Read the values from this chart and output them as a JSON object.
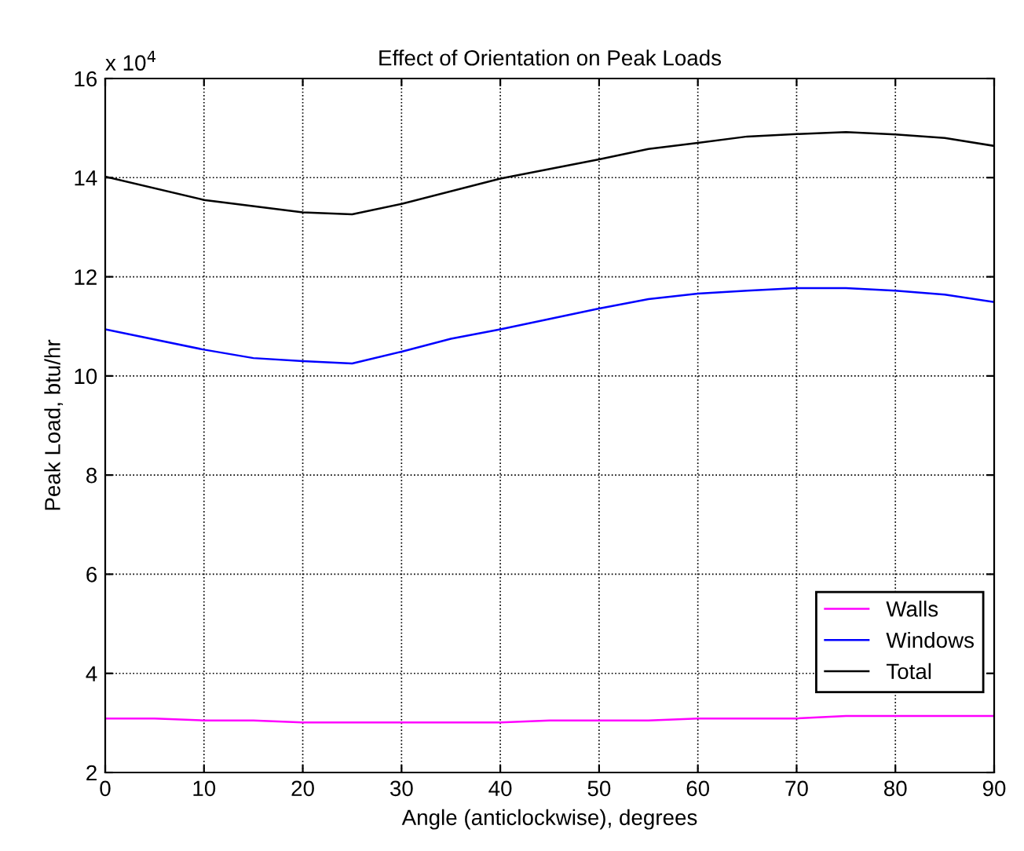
{
  "chart_data": {
    "type": "line",
    "title": "Effect of Orientation on Peak Loads",
    "xlabel": "Angle (anticlockwise), degrees",
    "ylabel": "Peak Load, btu/hr",
    "annotations": [
      "x 10$^{4}$"
    ],
    "series": [
      {
        "name": "Walls",
        "color": "#ff00ff",
        "x": [
          0,
          5,
          10,
          15,
          20,
          30,
          40,
          45,
          55,
          60,
          70,
          75,
          90
        ],
        "values": [
          3.09,
          3.09,
          3.05,
          3.05,
          3.01,
          3.01,
          3.01,
          3.05,
          3.05,
          3.09,
          3.09,
          3.14,
          3.14
        ]
      },
      {
        "name": "Windows",
        "color": "#0000ff",
        "x": [
          0,
          10,
          15,
          20,
          25,
          30,
          35,
          40,
          50,
          55,
          60,
          65,
          70,
          75,
          80,
          85,
          90
        ],
        "values": [
          10.94,
          10.53,
          10.36,
          10.3,
          10.25,
          10.49,
          10.75,
          10.94,
          11.36,
          11.55,
          11.66,
          11.72,
          11.77,
          11.77,
          11.72,
          11.64,
          11.49
        ]
      },
      {
        "name": "Total",
        "color": "#000000",
        "x": [
          0,
          10,
          20,
          25,
          30,
          40,
          50,
          55,
          60,
          65,
          70,
          75,
          80,
          85,
          90
        ],
        "values": [
          14.02,
          13.55,
          13.3,
          13.26,
          13.47,
          13.98,
          14.37,
          14.58,
          14.7,
          14.83,
          14.88,
          14.92,
          14.87,
          14.8,
          14.64
        ]
      }
    ],
    "xlim": [
      0,
      90
    ],
    "xticks": [
      0,
      10,
      20,
      30,
      40,
      50,
      60,
      70,
      80,
      90
    ],
    "ylim": [
      2,
      16
    ],
    "yticks": [
      2,
      4,
      6,
      8,
      10,
      12,
      14,
      16
    ],
    "grid": true,
    "legend": "lower right",
    "line_style": "solid",
    "marker": "none"
  }
}
